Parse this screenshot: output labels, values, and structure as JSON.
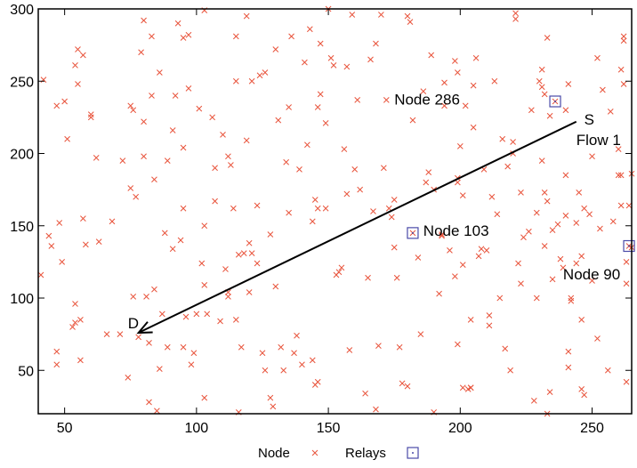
{
  "chart_data": {
    "type": "scatter",
    "title": "",
    "xlabel": "",
    "ylabel": "",
    "xlim": [
      40,
      265
    ],
    "ylim": [
      20,
      300
    ],
    "xticks": [
      50,
      100,
      150,
      200,
      250
    ],
    "yticks": [
      50,
      100,
      150,
      200,
      250,
      300
    ],
    "grid": false,
    "legend_placement": "bottom",
    "legend": [
      {
        "label": "Node",
        "marker": "x"
      },
      {
        "label": "Relays",
        "marker": "square-dot"
      }
    ],
    "colors": {
      "node": "#e8543c",
      "relay": "#4a4aa8",
      "axis": "#000000",
      "arrow": "#000000"
    },
    "series": [
      {
        "name": "Node",
        "marker": "x",
        "points": [
          [
            41,
            116
          ],
          [
            42,
            251
          ],
          [
            44,
            143
          ],
          [
            45,
            136
          ],
          [
            47,
            63
          ],
          [
            47,
            54
          ],
          [
            47,
            233
          ],
          [
            48,
            152
          ],
          [
            49,
            125
          ],
          [
            50,
            236
          ],
          [
            51,
            210
          ],
          [
            53,
            80
          ],
          [
            54,
            83
          ],
          [
            54,
            96
          ],
          [
            54,
            261
          ],
          [
            55,
            272
          ],
          [
            55,
            248
          ],
          [
            56,
            57
          ],
          [
            56,
            85
          ],
          [
            57,
            268
          ],
          [
            57,
            155
          ],
          [
            58,
            137
          ],
          [
            60,
            227
          ],
          [
            60,
            225
          ],
          [
            62,
            197
          ],
          [
            63,
            139
          ],
          [
            66,
            75
          ],
          [
            68,
            153
          ],
          [
            71,
            75
          ],
          [
            72,
            195
          ],
          [
            74,
            45
          ],
          [
            75,
            233
          ],
          [
            75,
            176
          ],
          [
            76,
            230
          ],
          [
            76,
            101
          ],
          [
            77,
            170
          ],
          [
            78,
            73
          ],
          [
            79,
            270
          ],
          [
            80,
            222
          ],
          [
            80,
            198
          ],
          [
            80,
            292
          ],
          [
            81,
            101
          ],
          [
            82,
            69
          ],
          [
            82,
            28
          ],
          [
            83,
            281
          ],
          [
            83,
            240
          ],
          [
            84,
            106
          ],
          [
            84,
            182
          ],
          [
            85,
            22
          ],
          [
            86,
            256
          ],
          [
            86,
            51
          ],
          [
            87,
            89
          ],
          [
            88,
            145
          ],
          [
            89,
            66
          ],
          [
            89,
            195
          ],
          [
            91,
            216
          ],
          [
            91,
            134
          ],
          [
            92,
            240
          ],
          [
            93,
            290
          ],
          [
            94,
            140
          ],
          [
            95,
            66
          ],
          [
            95,
            162
          ],
          [
            95,
            204
          ],
          [
            95,
            280
          ],
          [
            96,
            87
          ],
          [
            97,
            245
          ],
          [
            97,
            282
          ],
          [
            98,
            54
          ],
          [
            99,
            62
          ],
          [
            100,
            89
          ],
          [
            101,
            231
          ],
          [
            102,
            124
          ],
          [
            103,
            150
          ],
          [
            103,
            109
          ],
          [
            103,
            31
          ],
          [
            103,
            299
          ],
          [
            104,
            89
          ],
          [
            106,
            225
          ],
          [
            107,
            190
          ],
          [
            107,
            167
          ],
          [
            109,
            84
          ],
          [
            110,
            213
          ],
          [
            111,
            120
          ],
          [
            112,
            104
          ],
          [
            112,
            101
          ],
          [
            112,
            198
          ],
          [
            113,
            192
          ],
          [
            114,
            162
          ],
          [
            115,
            85
          ],
          [
            115,
            250
          ],
          [
            115,
            281
          ],
          [
            116,
            21
          ],
          [
            116,
            130
          ],
          [
            117,
            66
          ],
          [
            118,
            131
          ],
          [
            119,
            209
          ],
          [
            119,
            295
          ],
          [
            120,
            104
          ],
          [
            120,
            138
          ],
          [
            121,
            250
          ],
          [
            121,
            131
          ],
          [
            123,
            164
          ],
          [
            123,
            124
          ],
          [
            124,
            254
          ],
          [
            125,
            62
          ],
          [
            126,
            256
          ],
          [
            126,
            50
          ],
          [
            128,
            144
          ],
          [
            128,
            31
          ],
          [
            129,
            25
          ],
          [
            130,
            272
          ],
          [
            130,
            108
          ],
          [
            131,
            223
          ],
          [
            132,
            66
          ],
          [
            133,
            50
          ],
          [
            134,
            194
          ],
          [
            135,
            232
          ],
          [
            135,
            159
          ],
          [
            136,
            281
          ],
          [
            137,
            62
          ],
          [
            138,
            74
          ],
          [
            139,
            189
          ],
          [
            140,
            54
          ],
          [
            141,
            263
          ],
          [
            142,
            206
          ],
          [
            143,
            286
          ],
          [
            144,
            57
          ],
          [
            144,
            153
          ],
          [
            145,
            168
          ],
          [
            145,
            40
          ],
          [
            146,
            232
          ],
          [
            146,
            42
          ],
          [
            146,
            162
          ],
          [
            147,
            276
          ],
          [
            147,
            241
          ],
          [
            149,
            162
          ],
          [
            149,
            221
          ],
          [
            150,
            300
          ],
          [
            151,
            266
          ],
          [
            152,
            261
          ],
          [
            153,
            116
          ],
          [
            154,
            118
          ],
          [
            155,
            121
          ],
          [
            156,
            203
          ],
          [
            157,
            172
          ],
          [
            157,
            260
          ],
          [
            158,
            64
          ],
          [
            159,
            296
          ],
          [
            160,
            189
          ],
          [
            161,
            237
          ],
          [
            162,
            175
          ],
          [
            164,
            34
          ],
          [
            165,
            114
          ],
          [
            166,
            265
          ],
          [
            167,
            160
          ],
          [
            168,
            276
          ],
          [
            168,
            23
          ],
          [
            169,
            67
          ],
          [
            170,
            296
          ],
          [
            171,
            190
          ],
          [
            172,
            237
          ],
          [
            173,
            162
          ],
          [
            174,
            156
          ],
          [
            175,
            168
          ],
          [
            175,
            135
          ],
          [
            176,
            114
          ],
          [
            177,
            66
          ],
          [
            178,
            41
          ],
          [
            180,
            295
          ],
          [
            180,
            39
          ],
          [
            181,
            291
          ],
          [
            182,
            223
          ],
          [
            184,
            128
          ],
          [
            185,
            75
          ],
          [
            186,
            243
          ],
          [
            187,
            180
          ],
          [
            188,
            187
          ],
          [
            189,
            268
          ],
          [
            190,
            175
          ],
          [
            190,
            21
          ],
          [
            192,
            103
          ],
          [
            193,
            144
          ],
          [
            193,
            143
          ],
          [
            194,
            233
          ],
          [
            194,
            249
          ],
          [
            196,
            133
          ],
          [
            198,
            115
          ],
          [
            198,
            264
          ],
          [
            199,
            256
          ],
          [
            199,
            183
          ],
          [
            199,
            68
          ],
          [
            199,
            180
          ],
          [
            200,
            205
          ],
          [
            201,
            38
          ],
          [
            201,
            171
          ],
          [
            201,
            123
          ],
          [
            202,
            233
          ],
          [
            203,
            37
          ],
          [
            204,
            38
          ],
          [
            204,
            85
          ],
          [
            204,
            38
          ],
          [
            205,
            247
          ],
          [
            205,
            218
          ],
          [
            206,
            266
          ],
          [
            207,
            129
          ],
          [
            208,
            134
          ],
          [
            209,
            189
          ],
          [
            210,
            133
          ],
          [
            211,
            81
          ],
          [
            211,
            88
          ],
          [
            212,
            170
          ],
          [
            213,
            250
          ],
          [
            214,
            158
          ],
          [
            215,
            100
          ],
          [
            216,
            210
          ],
          [
            217,
            65
          ],
          [
            218,
            191
          ],
          [
            219,
            50
          ],
          [
            220,
            200
          ],
          [
            220,
            208
          ],
          [
            221,
            293
          ],
          [
            221,
            297
          ],
          [
            222,
            124
          ],
          [
            223,
            110
          ],
          [
            223,
            173
          ],
          [
            224,
            142
          ],
          [
            226,
            146
          ],
          [
            227,
            230
          ],
          [
            228,
            29
          ],
          [
            229,
            159
          ],
          [
            229,
            100
          ],
          [
            230,
            250
          ],
          [
            231,
            258
          ],
          [
            231,
            195
          ],
          [
            231,
            246
          ],
          [
            232,
            136
          ],
          [
            232,
            241
          ],
          [
            232,
            173
          ],
          [
            233,
            167
          ],
          [
            233,
            280
          ],
          [
            233,
            20
          ],
          [
            234,
            35
          ],
          [
            234,
            226
          ],
          [
            235,
            113
          ],
          [
            235,
            147
          ],
          [
            237,
            151
          ],
          [
            238,
            127
          ],
          [
            239,
            121
          ],
          [
            240,
            230
          ],
          [
            240,
            185
          ],
          [
            240,
            157
          ],
          [
            241,
            63
          ],
          [
            241,
            52
          ],
          [
            241,
            248
          ],
          [
            242,
            100
          ],
          [
            242,
            98
          ],
          [
            244,
            124
          ],
          [
            244,
            152
          ],
          [
            245,
            173
          ],
          [
            246,
            37
          ],
          [
            246,
            85
          ],
          [
            246,
            129
          ],
          [
            247,
            162
          ],
          [
            247,
            33
          ],
          [
            249,
            158
          ],
          [
            250,
            112
          ],
          [
            250,
            198
          ],
          [
            252,
            72
          ],
          [
            252,
            266
          ],
          [
            253,
            148
          ],
          [
            254,
            244
          ],
          [
            256,
            50
          ],
          [
            257,
            229
          ],
          [
            258,
            153
          ],
          [
            260,
            185
          ],
          [
            260,
            203
          ],
          [
            261,
            185
          ],
          [
            261,
            258
          ],
          [
            261,
            164
          ],
          [
            262,
            281
          ],
          [
            262,
            278
          ],
          [
            262,
            248
          ],
          [
            263,
            125
          ],
          [
            263,
            110
          ],
          [
            263,
            42
          ],
          [
            264,
            164
          ],
          [
            265,
            135
          ],
          [
            265,
            186
          ]
        ]
      },
      {
        "name": "Relays",
        "marker": "square-dot",
        "points": [
          [
            236,
            236
          ],
          [
            182,
            145
          ],
          [
            264,
            136
          ]
        ]
      }
    ],
    "annotations": [
      {
        "text": "Node 286",
        "x": 175,
        "y": 234,
        "anchor": "start"
      },
      {
        "text": "Node 103",
        "x": 186,
        "y": 143,
        "anchor": "start"
      },
      {
        "text": "Node 90",
        "x": 239,
        "y": 113,
        "anchor": "start"
      },
      {
        "text": "S",
        "x": 247,
        "y": 220,
        "anchor": "start"
      },
      {
        "text": "Flow 1",
        "x": 244,
        "y": 206,
        "anchor": "start"
      },
      {
        "text": "D",
        "x": 74,
        "y": 79,
        "anchor": "start"
      }
    ],
    "arrow": {
      "from": [
        244,
        222
      ],
      "to": [
        78,
        76
      ]
    }
  }
}
